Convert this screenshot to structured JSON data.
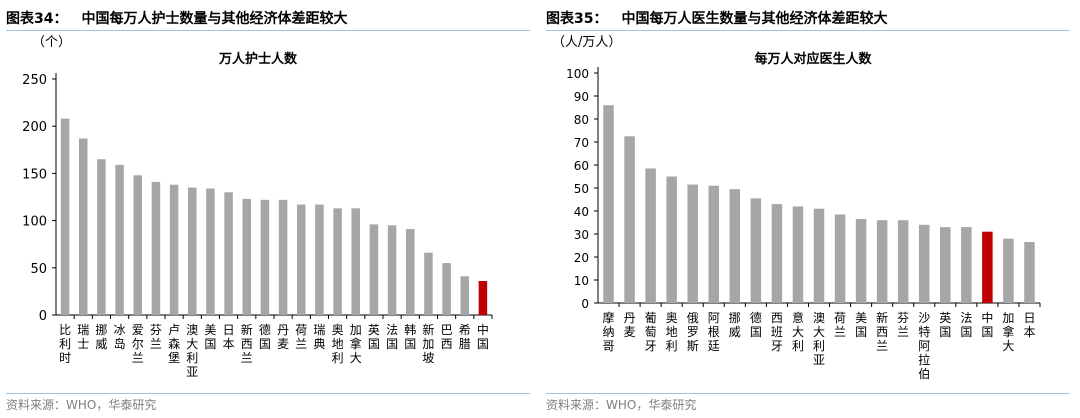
{
  "source_label": "资料来源：WHO，华泰研究",
  "chart_data": [
    {
      "figure_label": "图表34：",
      "figure_title": "中国每万人护士数量与其他经济体差距较大",
      "type": "bar",
      "title": "万人护士人数",
      "unit_label": "（个）",
      "xlabel": "",
      "ylabel": "",
      "ylim": [
        0,
        250
      ],
      "yticks": [
        0,
        50,
        100,
        150,
        200,
        250
      ],
      "grid": false,
      "highlight_category": "中国",
      "colors": {
        "bar": "#a6a6a6",
        "highlight": "#c00000",
        "axis": "#000000"
      },
      "categories": [
        "比利时",
        "瑞士",
        "挪威",
        "冰岛",
        "爱尔兰",
        "芬兰",
        "卢森堡",
        "澳大利亚",
        "美国",
        "日本",
        "新西兰",
        "德国",
        "丹麦",
        "荷兰",
        "瑞典",
        "奥地利",
        "加拿大",
        "英国",
        "法国",
        "韩国",
        "新加坡",
        "巴西",
        "希腊",
        "中国"
      ],
      "values": [
        208,
        187,
        165,
        159,
        148,
        141,
        138,
        135,
        134,
        130,
        123,
        122,
        122,
        117,
        117,
        113,
        113,
        96,
        95,
        91,
        66,
        55,
        41,
        36
      ]
    },
    {
      "figure_label": "图表35：",
      "figure_title": "中国每万人医生数量与其他经济体差距较大",
      "type": "bar",
      "title": "每万人对应医生人数",
      "unit_label": "（人/万人）",
      "xlabel": "",
      "ylabel": "",
      "ylim": [
        0,
        100
      ],
      "yticks": [
        0,
        10,
        20,
        30,
        40,
        50,
        60,
        70,
        80,
        90,
        100
      ],
      "grid": false,
      "highlight_category": "中国",
      "colors": {
        "bar": "#a6a6a6",
        "highlight": "#c00000",
        "axis": "#000000"
      },
      "categories": [
        "摩纳哥",
        "丹麦",
        "葡萄牙",
        "奥地利",
        "俄罗斯",
        "阿根廷",
        "挪威",
        "德国",
        "西班牙",
        "意大利",
        "澳大利亚",
        "荷兰",
        "美国",
        "新西兰",
        "芬兰",
        "沙特阿拉伯",
        "英国",
        "法国",
        "中国",
        "加拿大",
        "日本"
      ],
      "values": [
        86,
        72.5,
        58.5,
        55,
        51.5,
        51,
        49.5,
        45.5,
        43,
        42,
        41,
        38.5,
        36.5,
        36,
        36,
        34,
        33,
        33,
        31,
        28,
        26.5
      ]
    }
  ]
}
